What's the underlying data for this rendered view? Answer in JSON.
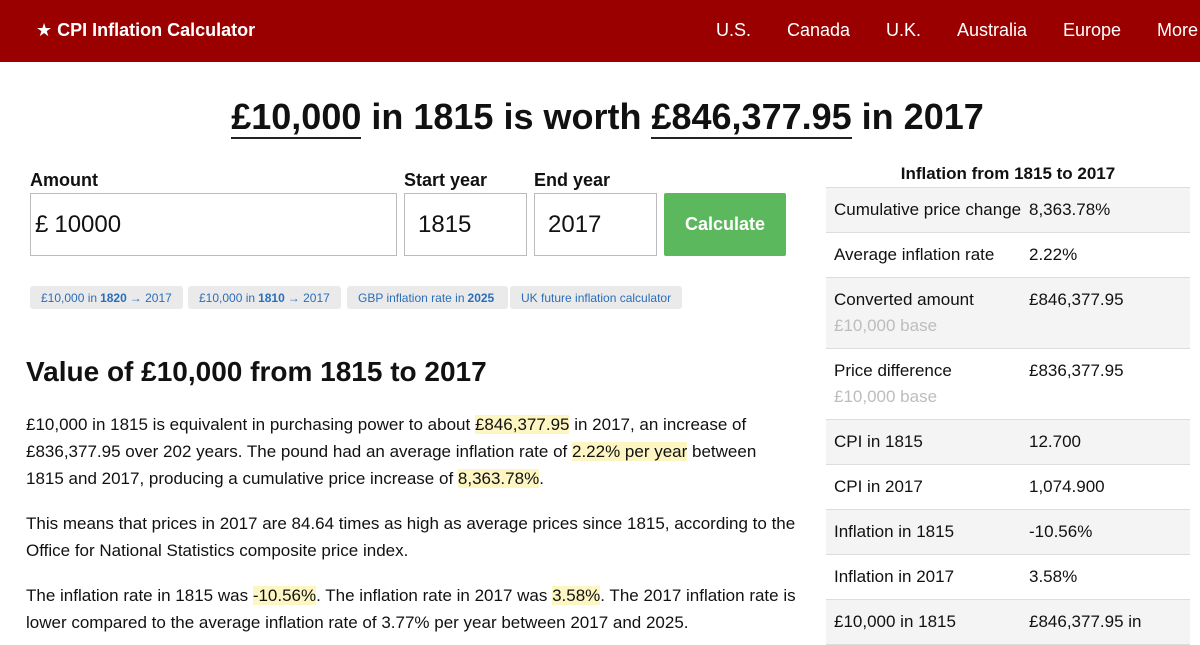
{
  "header": {
    "brand": "★ CPI Inflation Calculator",
    "nav": [
      "U.S.",
      "Canada",
      "U.K.",
      "Australia",
      "Europe",
      "More"
    ]
  },
  "headline": {
    "amount": "£10,000",
    "middle": " in 1815 is worth ",
    "result": "£846,377.95",
    "end": " in 2017"
  },
  "form": {
    "amount_label": "Amount",
    "amount_currency": "£",
    "amount_value": "10000",
    "start_label": "Start year",
    "start_value": "1815",
    "end_label": "End year",
    "end_value": "2017",
    "calculate_label": "Calculate"
  },
  "quick_links": [
    {
      "pre": "£10,000 in",
      "bold": "1820",
      "post": "→ 2017"
    },
    {
      "pre": "£10,000 in",
      "bold": "1810",
      "post": "→ 2017"
    },
    {
      "pre": "GBP inflation rate in",
      "bold": "2025",
      "post": ""
    },
    {
      "pre": "UK future inflation calculator",
      "bold": "",
      "post": ""
    }
  ],
  "content": {
    "title": "Value of £10,000 from 1815 to 2017",
    "p1": {
      "a": "£10,000 in 1815 is equivalent in purchasing power to about ",
      "h1": "£846,377.95",
      "b": " in 2017, an increase of £836,377.95 over 202 years. The pound had an average inflation rate of ",
      "h2": "2.22% per year",
      "c": " between 1815 and 2017, producing a cumulative price increase of ",
      "h3": "8,363.78%",
      "d": "."
    },
    "p2": "This means that prices in 2017 are 84.64 times as high as average prices since 1815, according to the Office for National Statistics composite price index.",
    "p3": {
      "a": "The inflation rate in 1815 was ",
      "h1": "-10.56%",
      "b": ". The inflation rate in 2017 was ",
      "h2": "3.58%",
      "c": ". The 2017 inflation rate is lower compared to the average inflation rate of 3.77% per year between 2017 and 2025."
    }
  },
  "sidebar": {
    "title": "Inflation from 1815 to 2017",
    "rows": [
      {
        "label": "Cumulative price change",
        "value": "8,363.78%",
        "sub": ""
      },
      {
        "label": "Average inflation rate",
        "value": "2.22%",
        "sub": ""
      },
      {
        "label": "Converted amount",
        "value": "£846,377.95",
        "sub": "£10,000 base"
      },
      {
        "label": "Price difference",
        "value": "£836,377.95",
        "sub": "£10,000 base"
      },
      {
        "label": "CPI in 1815",
        "value": "12.700",
        "sub": ""
      },
      {
        "label": "CPI in 2017",
        "value": "1,074.900",
        "sub": ""
      },
      {
        "label": "Inflation in 1815",
        "value": "-10.56%",
        "sub": ""
      },
      {
        "label": "Inflation in 2017",
        "value": "3.58%",
        "sub": ""
      },
      {
        "label": "£10,000 in 1815",
        "value": "£846,377.95 in",
        "sub": ""
      }
    ]
  },
  "colors": {
    "header_bg": "#9b0000",
    "button_bg": "#5cb85c",
    "highlight_bg": "#fdf6c3",
    "link": "#2a6ebb"
  }
}
